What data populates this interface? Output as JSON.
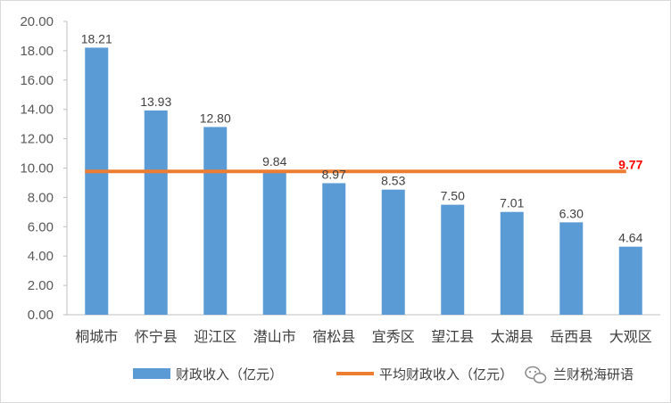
{
  "chart_data": {
    "type": "bar",
    "categories": [
      "桐城市",
      "怀宁县",
      "迎江区",
      "潜山市",
      "宿松县",
      "宜秀区",
      "望江县",
      "太湖县",
      "岳西县",
      "大观区"
    ],
    "series": [
      {
        "name": "财政收入（亿元）",
        "values": [
          18.21,
          13.93,
          12.8,
          9.84,
          8.97,
          8.53,
          7.5,
          7.01,
          6.3,
          4.64
        ],
        "color": "#5b9bd5",
        "kind": "bar"
      },
      {
        "name": "平均财政收入（亿元）",
        "values": [
          9.77,
          9.77,
          9.77,
          9.77,
          9.77,
          9.77,
          9.77,
          9.77,
          9.77,
          9.77
        ],
        "color": "#ed7d31",
        "kind": "line"
      }
    ],
    "bar_labels": [
      "18.21",
      "13.93",
      "12.80",
      "9.84",
      "8.97",
      "8.53",
      "7.50",
      "7.01",
      "6.30",
      "4.64"
    ],
    "average_label": "9.77",
    "average_label_color": "#ff0000",
    "yticks": [
      "0.00",
      "2.00",
      "4.00",
      "6.00",
      "8.00",
      "10.00",
      "12.00",
      "14.00",
      "16.00",
      "18.00",
      "20.00"
    ],
    "ylim": [
      0,
      20
    ],
    "grid": false,
    "legend": "bottom"
  },
  "legend": {
    "bar_label": "财政收入（亿元）",
    "line_label": "平均财政收入（亿元）"
  },
  "watermark": {
    "text": "兰财税海研语",
    "icon": "wechat-icon"
  }
}
